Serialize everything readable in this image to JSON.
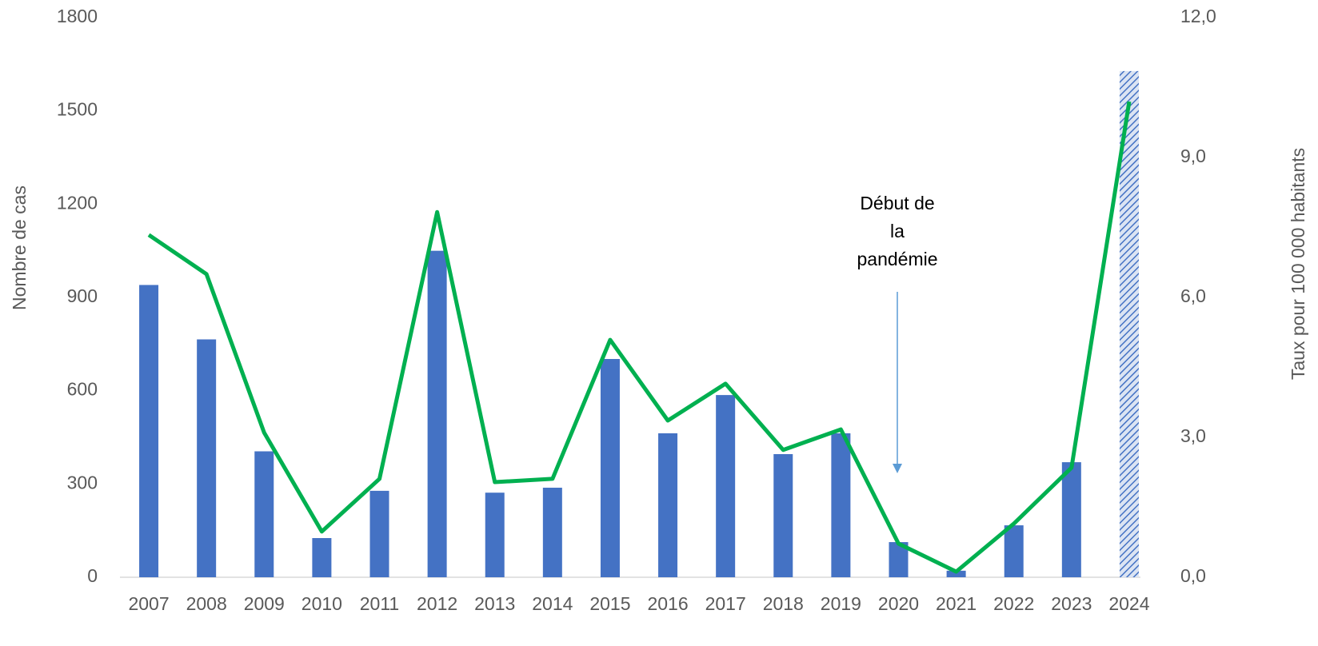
{
  "chart_data": {
    "type": "bar",
    "categories": [
      "2007",
      "2008",
      "2009",
      "2010",
      "2011",
      "2012",
      "2013",
      "2014",
      "2015",
      "2016",
      "2017",
      "2018",
      "2019",
      "2020",
      "2021",
      "2022",
      "2023",
      "2024"
    ],
    "series": [
      {
        "type": "bar",
        "color": "#4472c4",
        "values": [
          940,
          765,
          405,
          126,
          278,
          1050,
          272,
          288,
          702,
          463,
          586,
          396,
          463,
          113,
          21,
          167,
          370,
          1628
        ],
        "hatched": [
          false,
          false,
          false,
          false,
          false,
          false,
          false,
          false,
          false,
          false,
          false,
          false,
          false,
          false,
          false,
          false,
          false,
          true
        ]
      },
      {
        "type": "line",
        "axis": "y2",
        "color": "#00b050",
        "values": [
          7.34,
          6.5,
          3.1,
          0.98,
          2.11,
          7.83,
          2.04,
          2.11,
          5.09,
          3.36,
          4.15,
          2.73,
          3.17,
          0.72,
          0.12,
          1.15,
          2.35,
          10.2
        ]
      }
    ],
    "ylabel": "Nombre de cas",
    "y2label": "Taux pour 100 000 habitants",
    "ylim": [
      0,
      1800
    ],
    "yticks": [
      0,
      300,
      600,
      900,
      1200,
      1500,
      1800
    ],
    "y2lim": [
      0,
      12
    ],
    "y2ticks": [
      {
        "value": 0,
        "label": "0,0"
      },
      {
        "value": 3,
        "label": "3,0"
      },
      {
        "value": 6,
        "label": "6,0"
      },
      {
        "value": 9,
        "label": "9,0"
      },
      {
        "value": 12,
        "label": "12,0"
      }
    ],
    "annotation": [
      "Début de",
      "la",
      "pandémie"
    ]
  }
}
